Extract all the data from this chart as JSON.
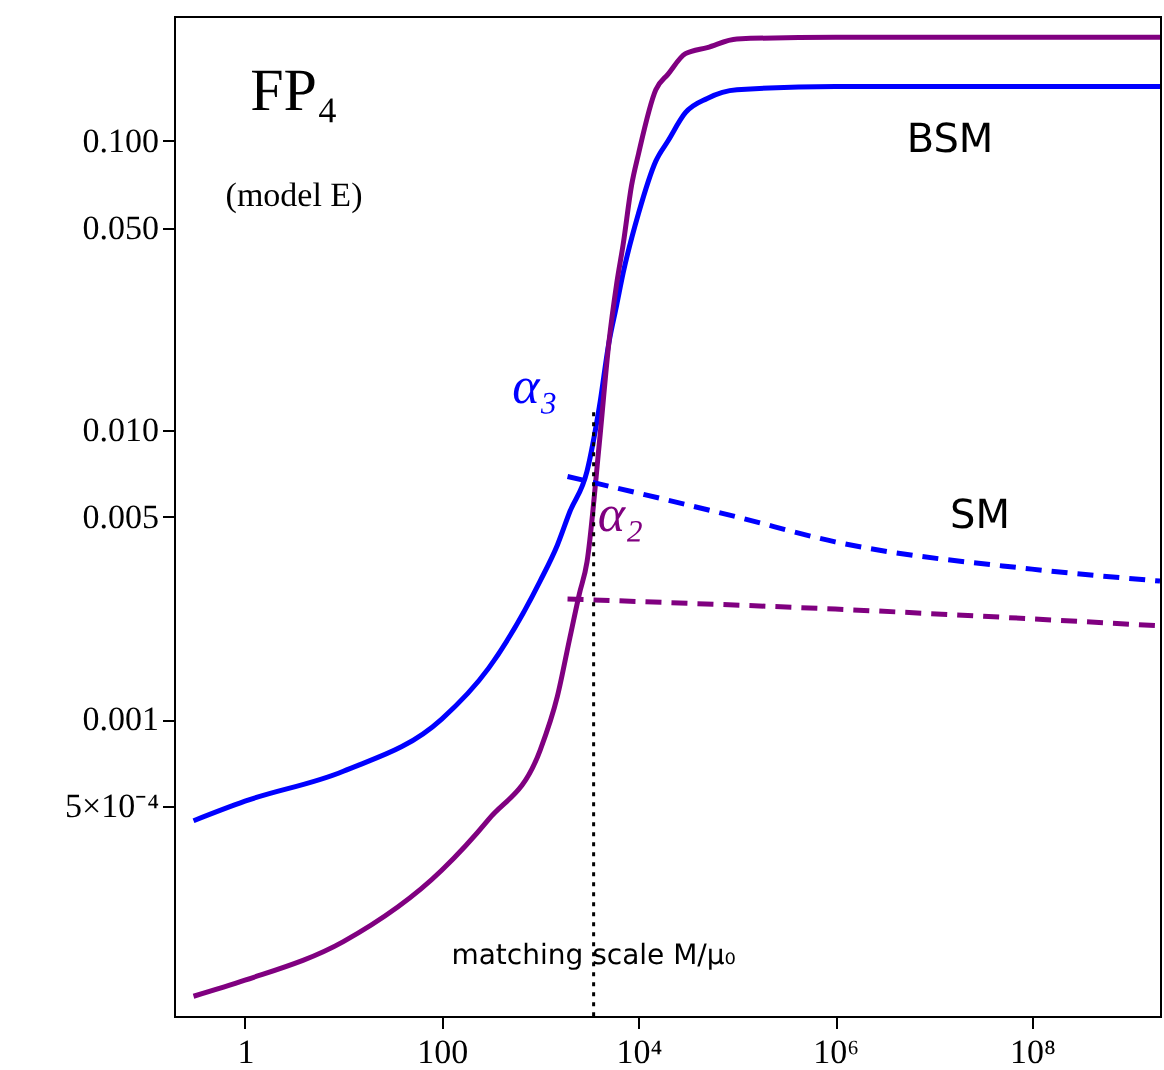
{
  "chart_data": {
    "type": "line",
    "log": "xy",
    "xlim": [
      0.19,
      2000000000
    ],
    "xticks": [
      1,
      100,
      {
        "value": 10000,
        "label": "10⁴"
      },
      {
        "value": 1000000,
        "label": "10⁶"
      },
      {
        "value": 100000000,
        "label": "10⁸"
      }
    ],
    "ylim": [
      9.4e-05,
      0.27
    ],
    "yticks": [
      {
        "value": 0.1,
        "label": "0.100"
      },
      {
        "value": 0.05,
        "label": "0.050"
      },
      {
        "value": 0.01,
        "label": "0.010"
      },
      {
        "value": 0.005,
        "label": "0.005"
      },
      {
        "value": 0.001,
        "label": "0.001"
      },
      {
        "value": 0.0005,
        "label": "5×10⁻⁴"
      }
    ],
    "grid": false,
    "series": [
      {
        "name": "α₃",
        "color": "#0000ff",
        "line_style": "solid",
        "x": [
          0.3,
          1,
          10,
          100,
          300,
          1000,
          1500,
          2000,
          3000,
          4000,
          5000,
          6000,
          7000,
          10000,
          15000,
          20000,
          30000,
          50000,
          100000,
          1000000,
          100000000,
          2000000000
        ],
        "values": [
          0.000445,
          0.00052,
          0.00066,
          0.001,
          0.0015,
          0.003,
          0.004,
          0.0052,
          0.0072,
          0.012,
          0.02,
          0.027,
          0.035,
          0.056,
          0.085,
          0.1,
          0.125,
          0.14,
          0.15,
          0.154,
          0.154,
          0.154
        ]
      },
      {
        "name": "α₂",
        "color": "#800080",
        "line_style": "solid",
        "x": [
          0.3,
          1,
          10,
          100,
          300,
          1000,
          1500,
          2000,
          2500,
          3000,
          4000,
          5000,
          6000,
          7000,
          8500,
          10000,
          15000,
          20000,
          30000,
          50000,
          100000,
          1000000,
          100000000,
          2000000000
        ],
        "values": [
          0.00011,
          0.000125,
          0.00017,
          0.0003,
          0.00045,
          0.00078,
          0.0012,
          0.0019,
          0.0027,
          0.0035,
          0.009,
          0.02,
          0.032,
          0.044,
          0.07,
          0.09,
          0.15,
          0.17,
          0.2,
          0.21,
          0.225,
          0.228,
          0.228,
          0.228
        ]
      },
      {
        "color": "#0000ff",
        "line_style": "dashed",
        "x": [
          1900,
          100000,
          1000000,
          100000000,
          2000000000
        ],
        "values": [
          0.0069,
          0.005,
          0.0041,
          0.0033,
          0.003
        ]
      },
      {
        "color": "#800080",
        "line_style": "dashed",
        "x": [
          1900,
          1000000,
          2000000000
        ],
        "values": [
          0.0026,
          0.0024,
          0.0021
        ]
      }
    ],
    "ref_lines": [
      {
        "axis": "x",
        "value": 3500,
        "label": "matching scale M/μ₀",
        "line_style": "dotted",
        "color": "#000000"
      }
    ],
    "annotations": [
      "FP₄",
      "(model E)",
      "BSM",
      "SM"
    ]
  }
}
